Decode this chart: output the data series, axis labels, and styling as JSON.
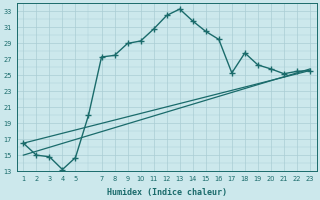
{
  "xlabel": "Humidex (Indice chaleur)",
  "bg_color": "#cce8ec",
  "line_color": "#1a6b6b",
  "grid_color": "#aacdd4",
  "xlim": [
    0.5,
    23.5
  ],
  "ylim": [
    13,
    34
  ],
  "xticks": [
    1,
    2,
    3,
    4,
    5,
    7,
    8,
    9,
    10,
    11,
    12,
    13,
    14,
    15,
    16,
    17,
    18,
    19,
    20,
    21,
    22,
    23
  ],
  "yticks": [
    13,
    15,
    17,
    19,
    21,
    23,
    25,
    27,
    29,
    31,
    33
  ],
  "series1_x": [
    1,
    2,
    3,
    4,
    5,
    6,
    7,
    8,
    9,
    10,
    11,
    12,
    13,
    14,
    15,
    16,
    17,
    18,
    19,
    20,
    21,
    22,
    23
  ],
  "series1_y": [
    16.5,
    15.0,
    14.8,
    13.2,
    14.7,
    20.0,
    27.3,
    27.5,
    29.0,
    29.3,
    30.8,
    32.5,
    33.3,
    31.8,
    30.5,
    29.5,
    25.3,
    27.8,
    26.3,
    25.8,
    25.2,
    25.5,
    25.6
  ],
  "series2_x": [
    1,
    23
  ],
  "series2_y": [
    16.5,
    25.6
  ],
  "series3_x": [
    1,
    23
  ],
  "series3_y": [
    15.0,
    25.8
  ]
}
